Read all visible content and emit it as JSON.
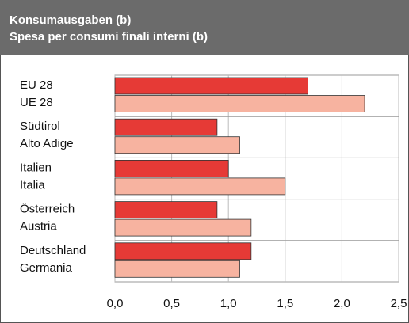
{
  "chart_data": {
    "type": "hbar",
    "title": [
      "Konsumausgaben (b)",
      "Spesa per consumi finali interni (b)"
    ],
    "categories": [
      [
        "EU 28",
        "UE 28"
      ],
      [
        "Südtirol",
        "Alto Adige"
      ],
      [
        "Italien",
        "Italia"
      ],
      [
        "Österreich",
        "Austria"
      ],
      [
        "Deutschland",
        "Germania"
      ]
    ],
    "series": [
      {
        "color": "#e63a36",
        "values": [
          1.7,
          0.9,
          1.0,
          0.9,
          1.2
        ]
      },
      {
        "color": "#f7b3a0",
        "values": [
          2.2,
          1.1,
          1.5,
          1.2,
          1.1
        ]
      }
    ],
    "xlim": [
      0,
      2.5
    ],
    "xticks": [
      {
        "value": 0,
        "label": "0,0"
      },
      {
        "value": 0.5,
        "label": "0,5"
      },
      {
        "value": 1.0,
        "label": "1,0"
      },
      {
        "value": 1.5,
        "label": "1,5"
      },
      {
        "value": 2.0,
        "label": "2,0"
      },
      {
        "value": 2.5,
        "label": "2,5"
      }
    ],
    "grid": true
  }
}
